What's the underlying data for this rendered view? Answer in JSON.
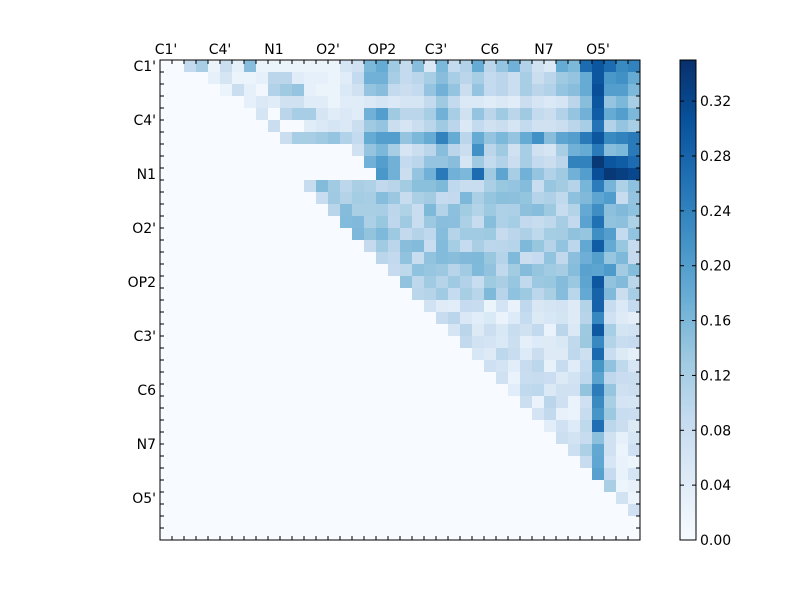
{
  "chart_data": {
    "type": "heatmap",
    "title": "",
    "xlabel": "",
    "ylabel": "",
    "n": 40,
    "x_tick_labels": [
      "C1'",
      "C4'",
      "N1",
      "O2'",
      "OP2",
      "C3'",
      "C6",
      "N7",
      "O5'"
    ],
    "y_tick_labels": [
      "C1'",
      "C4'",
      "N1",
      "O2'",
      "OP2",
      "C3'",
      "C6",
      "N7",
      "O5'"
    ],
    "tick_indices": [
      0,
      4.5,
      9,
      13.5,
      18,
      22.5,
      27,
      31.5,
      36
    ],
    "colormap": "Blues",
    "vmin": 0.0,
    "vmax": 0.35,
    "colorbar_ticks": [
      "0.00",
      "0.04",
      "0.08",
      "0.12",
      "0.16",
      "0.20",
      "0.24",
      "0.28",
      "0.32"
    ],
    "matrix_note_rows": [
      [
        0.0,
        0.0,
        0.09,
        0.12,
        0.02,
        0.08,
        0.03,
        0.15,
        0.02,
        0.02,
        0.02,
        0.02,
        0.02,
        0.02,
        0.02,
        0.06,
        0.07,
        0.16,
        0.18,
        0.13,
        0.09,
        0.15,
        0.05,
        0.16,
        0.09,
        0.11,
        0.18,
        0.1,
        0.14,
        0.17,
        0.11,
        0.07,
        0.05,
        0.18,
        0.16,
        0.27,
        0.3,
        0.27,
        0.23,
        0.24
      ],
      [
        0.0,
        0.0,
        0.0,
        0.0,
        0.03,
        0.06,
        0.02,
        0.02,
        0.03,
        0.1,
        0.1,
        0.04,
        0.03,
        0.03,
        0.02,
        0.04,
        0.09,
        0.17,
        0.17,
        0.12,
        0.09,
        0.1,
        0.12,
        0.15,
        0.12,
        0.1,
        0.12,
        0.09,
        0.1,
        0.08,
        0.12,
        0.08,
        0.1,
        0.13,
        0.14,
        0.18,
        0.3,
        0.21,
        0.22,
        0.18
      ],
      [
        0.0,
        0.0,
        0.0,
        0.0,
        0.0,
        0.02,
        0.08,
        0.03,
        0.01,
        0.11,
        0.13,
        0.14,
        0.03,
        0.02,
        0.02,
        0.05,
        0.07,
        0.14,
        0.15,
        0.09,
        0.08,
        0.09,
        0.14,
        0.17,
        0.14,
        0.08,
        0.14,
        0.09,
        0.1,
        0.08,
        0.12,
        0.1,
        0.11,
        0.14,
        0.15,
        0.18,
        0.31,
        0.2,
        0.2,
        0.16
      ],
      [
        0.0,
        0.0,
        0.0,
        0.0,
        0.0,
        0.0,
        0.0,
        0.03,
        0.05,
        0.04,
        0.07,
        0.07,
        0.04,
        0.04,
        0.02,
        0.04,
        0.04,
        0.05,
        0.06,
        0.05,
        0.06,
        0.06,
        0.09,
        0.13,
        0.09,
        0.05,
        0.05,
        0.04,
        0.05,
        0.04,
        0.08,
        0.06,
        0.05,
        0.06,
        0.1,
        0.15,
        0.3,
        0.14,
        0.16,
        0.12
      ],
      [
        0.0,
        0.0,
        0.0,
        0.0,
        0.0,
        0.0,
        0.0,
        0.0,
        0.06,
        0.0,
        0.1,
        0.12,
        0.12,
        0.06,
        0.04,
        0.05,
        0.04,
        0.17,
        0.2,
        0.13,
        0.1,
        0.1,
        0.12,
        0.17,
        0.12,
        0.07,
        0.14,
        0.1,
        0.13,
        0.1,
        0.13,
        0.09,
        0.08,
        0.11,
        0.14,
        0.17,
        0.29,
        0.18,
        0.2,
        0.16
      ],
      [
        0.0,
        0.0,
        0.0,
        0.0,
        0.0,
        0.0,
        0.0,
        0.0,
        0.0,
        0.08,
        0.0,
        0.0,
        0.04,
        0.05,
        0.06,
        0.05,
        0.08,
        0.13,
        0.14,
        0.08,
        0.06,
        0.08,
        0.1,
        0.13,
        0.1,
        0.05,
        0.09,
        0.07,
        0.08,
        0.06,
        0.09,
        0.07,
        0.07,
        0.08,
        0.1,
        0.12,
        0.26,
        0.11,
        0.14,
        0.12
      ],
      [
        0.0,
        0.0,
        0.0,
        0.0,
        0.0,
        0.0,
        0.0,
        0.0,
        0.0,
        0.0,
        0.08,
        0.12,
        0.12,
        0.13,
        0.14,
        0.11,
        0.09,
        0.18,
        0.2,
        0.2,
        0.14,
        0.16,
        0.18,
        0.24,
        0.18,
        0.1,
        0.18,
        0.14,
        0.16,
        0.14,
        0.18,
        0.22,
        0.15,
        0.19,
        0.2,
        0.25,
        0.3,
        0.23,
        0.24,
        0.25
      ],
      [
        0.0,
        0.0,
        0.0,
        0.0,
        0.0,
        0.0,
        0.0,
        0.0,
        0.0,
        0.0,
        0.0,
        0.0,
        0.0,
        0.0,
        0.0,
        0.0,
        0.07,
        0.14,
        0.16,
        0.12,
        0.06,
        0.08,
        0.1,
        0.15,
        0.1,
        0.08,
        0.22,
        0.1,
        0.13,
        0.07,
        0.12,
        0.07,
        0.06,
        0.12,
        0.17,
        0.18,
        0.25,
        0.15,
        0.16,
        0.25
      ],
      [
        0.0,
        0.0,
        0.0,
        0.0,
        0.0,
        0.0,
        0.0,
        0.0,
        0.0,
        0.0,
        0.0,
        0.0,
        0.0,
        0.0,
        0.0,
        0.0,
        0.0,
        0.17,
        0.2,
        0.17,
        0.09,
        0.1,
        0.14,
        0.14,
        0.15,
        0.06,
        0.13,
        0.09,
        0.11,
        0.08,
        0.12,
        0.09,
        0.08,
        0.1,
        0.24,
        0.24,
        0.34,
        0.3,
        0.29,
        0.27
      ],
      [
        0.0,
        0.0,
        0.0,
        0.0,
        0.0,
        0.0,
        0.0,
        0.0,
        0.0,
        0.0,
        0.0,
        0.0,
        0.0,
        0.0,
        0.0,
        0.0,
        0.0,
        0.0,
        0.21,
        0.17,
        0.08,
        0.14,
        0.17,
        0.25,
        0.17,
        0.16,
        0.27,
        0.13,
        0.19,
        0.12,
        0.17,
        0.14,
        0.11,
        0.13,
        0.17,
        0.2,
        0.31,
        0.34,
        0.33,
        0.32
      ]
    ]
  },
  "colors": {
    "low": "#f7fbff",
    "high": "#08306b"
  }
}
